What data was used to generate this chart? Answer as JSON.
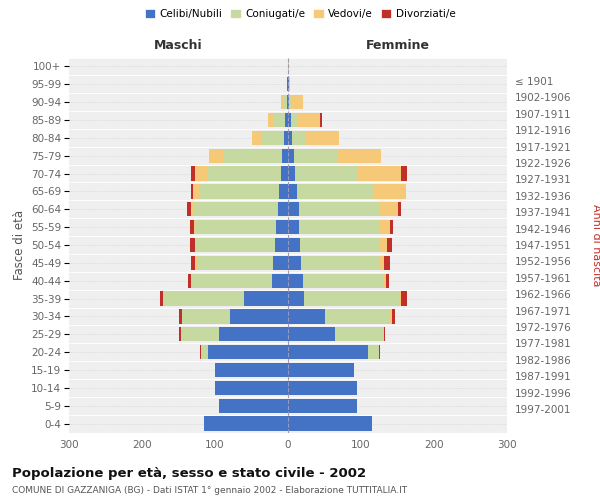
{
  "age_groups": [
    "0-4",
    "5-9",
    "10-14",
    "15-19",
    "20-24",
    "25-29",
    "30-34",
    "35-39",
    "40-44",
    "45-49",
    "50-54",
    "55-59",
    "60-64",
    "65-69",
    "70-74",
    "75-79",
    "80-84",
    "85-89",
    "90-94",
    "95-99",
    "100+"
  ],
  "birth_years": [
    "1997-2001",
    "1992-1996",
    "1987-1991",
    "1982-1986",
    "1977-1981",
    "1972-1976",
    "1967-1971",
    "1962-1966",
    "1957-1961",
    "1952-1956",
    "1947-1951",
    "1942-1946",
    "1937-1941",
    "1932-1936",
    "1927-1931",
    "1922-1926",
    "1917-1921",
    "1912-1916",
    "1907-1911",
    "1902-1906",
    "≤ 1901"
  ],
  "male": {
    "celibe": [
      115,
      95,
      100,
      100,
      110,
      95,
      80,
      60,
      22,
      20,
      18,
      16,
      14,
      12,
      10,
      8,
      5,
      4,
      2,
      1,
      0
    ],
    "coniugato": [
      0,
      0,
      0,
      0,
      8,
      50,
      65,
      110,
      110,
      105,
      108,
      110,
      115,
      110,
      100,
      80,
      30,
      15,
      5,
      0,
      0
    ],
    "vedovo": [
      0,
      0,
      0,
      0,
      1,
      1,
      0,
      1,
      1,
      2,
      2,
      3,
      4,
      8,
      18,
      20,
      15,
      8,
      3,
      0,
      0
    ],
    "divorziato": [
      0,
      0,
      0,
      0,
      1,
      3,
      4,
      5,
      4,
      6,
      6,
      5,
      6,
      3,
      5,
      0,
      0,
      0,
      0,
      0,
      0
    ]
  },
  "female": {
    "nubile": [
      115,
      95,
      95,
      90,
      110,
      65,
      50,
      22,
      20,
      18,
      16,
      15,
      15,
      12,
      10,
      8,
      5,
      4,
      2,
      1,
      0
    ],
    "coniugata": [
      0,
      0,
      0,
      0,
      15,
      65,
      90,
      130,
      110,
      108,
      110,
      110,
      110,
      105,
      85,
      60,
      20,
      10,
      3,
      0,
      0
    ],
    "vedova": [
      0,
      0,
      0,
      0,
      0,
      1,
      2,
      3,
      4,
      6,
      10,
      15,
      25,
      45,
      60,
      60,
      45,
      30,
      15,
      2,
      2
    ],
    "divorziata": [
      0,
      0,
      0,
      0,
      1,
      2,
      5,
      8,
      5,
      8,
      6,
      4,
      5,
      0,
      8,
      0,
      0,
      2,
      0,
      0,
      0
    ]
  },
  "colors": {
    "celibe": "#4472C4",
    "coniugato": "#C6D9A0",
    "vedovo": "#F5C978",
    "divorziato": "#C0302A"
  },
  "xlim": 300,
  "title": "Popolazione per età, sesso e stato civile - 2002",
  "subtitle": "COMUNE DI GAZZANIGA (BG) - Dati ISTAT 1° gennaio 2002 - Elaborazione TUTTITALIA.IT",
  "ylabel_left": "Fasce di età",
  "ylabel_right": "Anni di nascita",
  "xlabel_maschi": "Maschi",
  "xlabel_femmine": "Femmine",
  "legend_labels": [
    "Celibi/Nubili",
    "Coniugati/e",
    "Vedovi/e",
    "Divorziati/e"
  ],
  "bg_color": "#FFFFFF",
  "plot_bg": "#EFEFEF",
  "bar_height": 0.8
}
